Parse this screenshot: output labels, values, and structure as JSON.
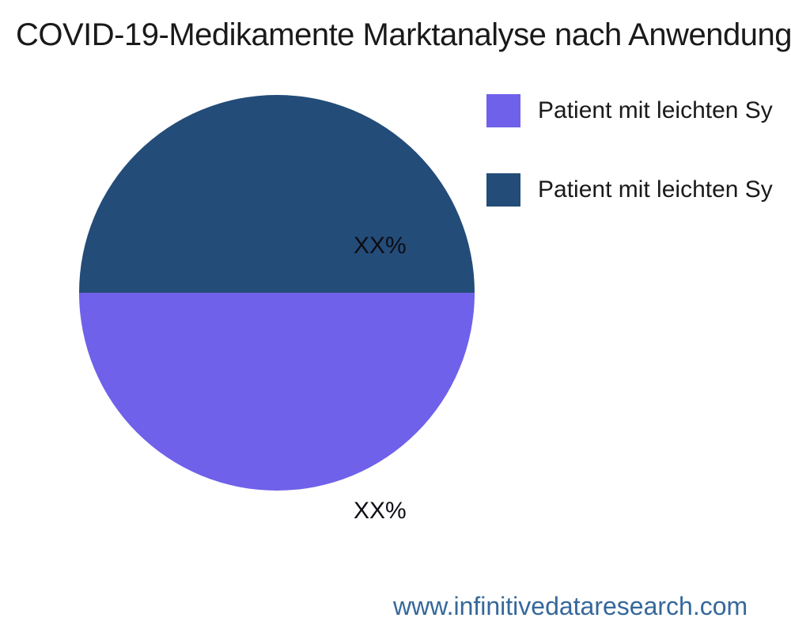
{
  "chart_data": {
    "type": "pie",
    "title": "COVID-19-Medikamente Marktanalyse nach Anwendung",
    "legend_position": "right",
    "slices": [
      {
        "label": "Patient mit leichten Sy",
        "display_value": "XX%",
        "value": 50,
        "color": "#6F61E9",
        "position": "bottom"
      },
      {
        "label": "Patient mit leichten Sy",
        "display_value": "XX%",
        "value": 50,
        "color": "#234C78",
        "position": "top"
      }
    ]
  },
  "footer": {
    "website": "www.infinitivedataresearch.com",
    "link_color": "#35689A"
  },
  "colors": {
    "background": "#FFFFFF",
    "title_text": "#1A1A1A",
    "slice_label_text": "#0D0D15"
  }
}
